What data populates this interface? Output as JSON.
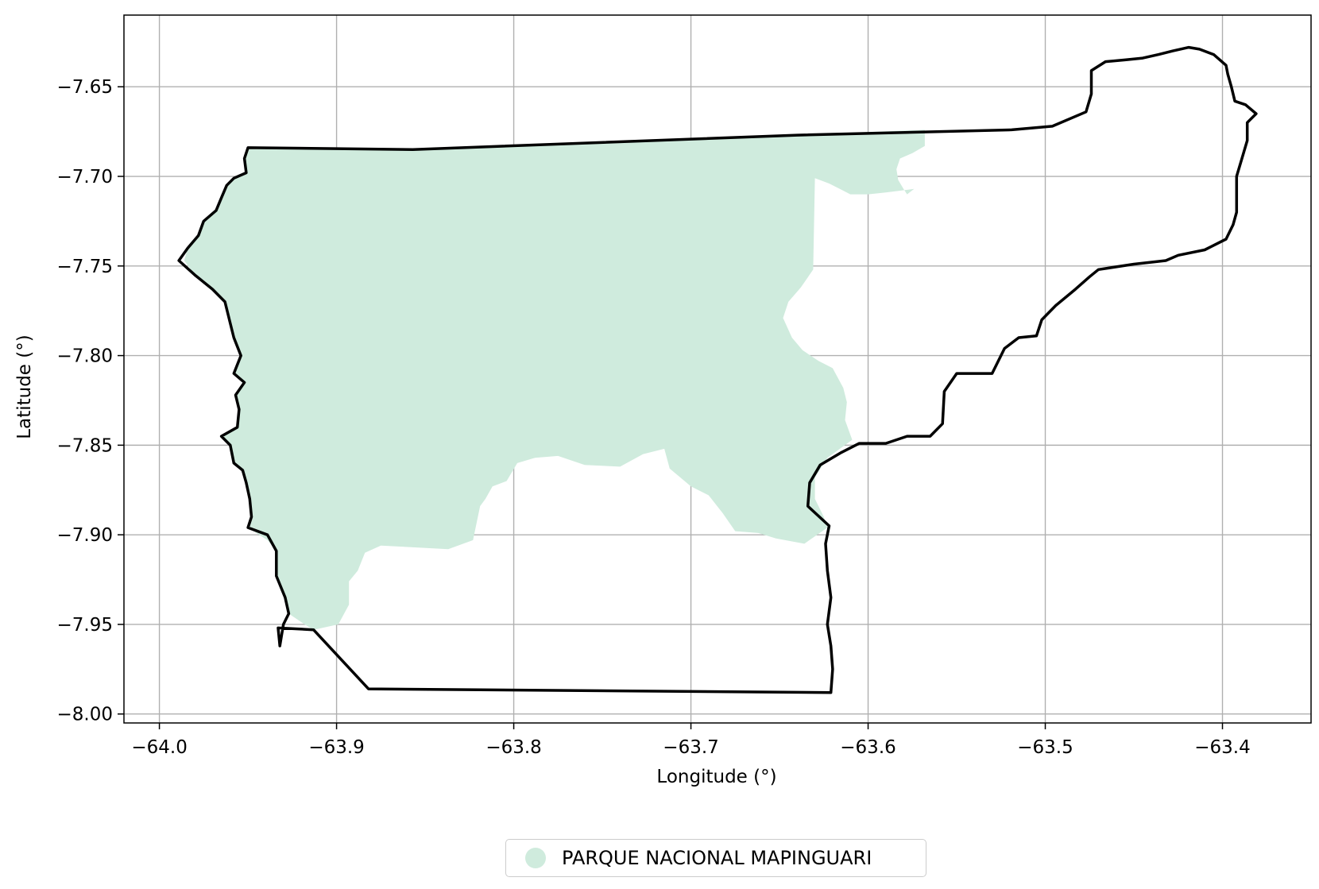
{
  "chart_data": {
    "type": "map",
    "xlabel": "Longitude (°)",
    "ylabel": "Latitude (°)",
    "xlim": [
      -64.02,
      -63.35
    ],
    "ylim": [
      -8.005,
      -7.61
    ],
    "x_ticks": [
      -64.0,
      -63.9,
      -63.8,
      -63.7,
      -63.6,
      -63.5,
      -63.4
    ],
    "x_tick_labels": [
      "−64.0",
      "−63.9",
      "−63.8",
      "−63.7",
      "−63.6",
      "−63.5",
      "−63.4"
    ],
    "y_ticks": [
      -7.65,
      -7.7,
      -7.75,
      -7.8,
      -7.85,
      -7.9,
      -7.95,
      -8.0
    ],
    "y_tick_labels": [
      "−7.65",
      "−7.70",
      "−7.75",
      "−7.80",
      "−7.85",
      "−7.90",
      "−7.95",
      "−8.00"
    ],
    "grid": true,
    "legend": {
      "position": "bottom-center",
      "entries": [
        {
          "label": "PARQUE NACIONAL MAPINGUARI",
          "color": "#cfebdd"
        }
      ]
    },
    "park_area": {
      "name": "PARQUE NACIONAL MAPINGUARI",
      "color": "#cfebdd",
      "coords": [
        [
          -63.95,
          -7.684
        ],
        [
          -63.857,
          -7.685
        ],
        [
          -63.568,
          -7.674
        ],
        [
          -63.568,
          -7.683
        ],
        [
          -63.575,
          -7.687
        ],
        [
          -63.582,
          -7.69
        ],
        [
          -63.584,
          -7.696
        ],
        [
          -63.583,
          -7.702
        ],
        [
          -63.58,
          -7.707
        ],
        [
          -63.578,
          -7.71
        ],
        [
          -63.574,
          -7.707
        ],
        [
          -63.59,
          -7.709
        ],
        [
          -63.6,
          -7.71
        ],
        [
          -63.61,
          -7.71
        ],
        [
          -63.616,
          -7.707
        ],
        [
          -63.622,
          -7.704
        ],
        [
          -63.63,
          -7.701
        ],
        [
          -63.631,
          -7.752
        ],
        [
          -63.638,
          -7.762
        ],
        [
          -63.645,
          -7.77
        ],
        [
          -63.648,
          -7.779
        ],
        [
          -63.643,
          -7.79
        ],
        [
          -63.637,
          -7.797
        ],
        [
          -63.628,
          -7.803
        ],
        [
          -63.62,
          -7.807
        ],
        [
          -63.614,
          -7.818
        ],
        [
          -63.612,
          -7.826
        ],
        [
          -63.613,
          -7.836
        ],
        [
          -63.609,
          -7.847
        ],
        [
          -63.623,
          -7.857
        ],
        [
          -63.63,
          -7.868
        ],
        [
          -63.63,
          -7.88
        ],
        [
          -63.625,
          -7.89
        ],
        [
          -63.623,
          -7.896
        ],
        [
          -63.636,
          -7.905
        ],
        [
          -63.652,
          -7.902
        ],
        [
          -63.662,
          -7.899
        ],
        [
          -63.675,
          -7.898
        ],
        [
          -63.682,
          -7.888
        ],
        [
          -63.69,
          -7.878
        ],
        [
          -63.7,
          -7.873
        ],
        [
          -63.712,
          -7.863
        ],
        [
          -63.715,
          -7.852
        ],
        [
          -63.727,
          -7.855
        ],
        [
          -63.74,
          -7.862
        ],
        [
          -63.76,
          -7.861
        ],
        [
          -63.775,
          -7.856
        ],
        [
          -63.788,
          -7.857
        ],
        [
          -63.798,
          -7.86
        ],
        [
          -63.804,
          -7.87
        ],
        [
          -63.812,
          -7.873
        ],
        [
          -63.816,
          -7.88
        ],
        [
          -63.819,
          -7.884
        ],
        [
          -63.823,
          -7.903
        ],
        [
          -63.837,
          -7.908
        ],
        [
          -63.875,
          -7.906
        ],
        [
          -63.884,
          -7.91
        ],
        [
          -63.888,
          -7.92
        ],
        [
          -63.893,
          -7.926
        ],
        [
          -63.893,
          -7.939
        ],
        [
          -63.899,
          -7.95
        ],
        [
          -63.913,
          -7.953
        ],
        [
          -63.918,
          -7.95
        ],
        [
          -63.927,
          -7.944
        ],
        [
          -63.929,
          -7.935
        ],
        [
          -63.934,
          -7.923
        ],
        [
          -63.934,
          -7.909
        ],
        [
          -63.939,
          -7.903
        ],
        [
          -63.95,
          -7.896
        ],
        [
          -63.948,
          -7.89
        ],
        [
          -63.949,
          -7.88
        ],
        [
          -63.951,
          -7.871
        ],
        [
          -63.953,
          -7.864
        ],
        [
          -63.958,
          -7.86
        ],
        [
          -63.96,
          -7.85
        ],
        [
          -63.965,
          -7.845
        ],
        [
          -63.956,
          -7.84
        ],
        [
          -63.955,
          -7.83
        ],
        [
          -63.957,
          -7.822
        ],
        [
          -63.952,
          -7.815
        ],
        [
          -63.958,
          -7.81
        ],
        [
          -63.954,
          -7.8
        ],
        [
          -63.958,
          -7.79
        ],
        [
          -63.96,
          -7.782
        ],
        [
          -63.963,
          -7.77
        ],
        [
          -63.97,
          -7.763
        ],
        [
          -63.98,
          -7.755
        ],
        [
          -63.986,
          -7.747
        ],
        [
          -63.984,
          -7.74
        ],
        [
          -63.978,
          -7.733
        ],
        [
          -63.975,
          -7.725
        ],
        [
          -63.968,
          -7.719
        ],
        [
          -63.965,
          -7.712
        ],
        [
          -63.962,
          -7.705
        ],
        [
          -63.958,
          -7.701
        ],
        [
          -63.951,
          -7.698
        ],
        [
          -63.952,
          -7.69
        ],
        [
          -63.95,
          -7.684
        ]
      ]
    },
    "boundary": {
      "color": "#000000",
      "coords": [
        [
          -63.932,
          -7.962
        ],
        [
          -63.933,
          -7.952
        ],
        [
          -63.913,
          -7.953
        ],
        [
          -63.882,
          -7.986
        ],
        [
          -63.621,
          -7.988
        ],
        [
          -63.62,
          -7.975
        ],
        [
          -63.621,
          -7.962
        ],
        [
          -63.623,
          -7.95
        ],
        [
          -63.621,
          -7.935
        ],
        [
          -63.623,
          -7.92
        ],
        [
          -63.624,
          -7.905
        ],
        [
          -63.622,
          -7.895
        ],
        [
          -63.634,
          -7.884
        ],
        [
          -63.633,
          -7.871
        ],
        [
          -63.627,
          -7.861
        ],
        [
          -63.615,
          -7.854
        ],
        [
          -63.605,
          -7.849
        ],
        [
          -63.59,
          -7.849
        ],
        [
          -63.578,
          -7.845
        ],
        [
          -63.565,
          -7.845
        ],
        [
          -63.558,
          -7.838
        ],
        [
          -63.557,
          -7.82
        ],
        [
          -63.55,
          -7.81
        ],
        [
          -63.53,
          -7.81
        ],
        [
          -63.523,
          -7.796
        ],
        [
          -63.515,
          -7.79
        ],
        [
          -63.505,
          -7.789
        ],
        [
          -63.502,
          -7.78
        ],
        [
          -63.494,
          -7.772
        ],
        [
          -63.483,
          -7.763
        ],
        [
          -63.475,
          -7.756
        ],
        [
          -63.47,
          -7.752
        ],
        [
          -63.45,
          -7.749
        ],
        [
          -63.432,
          -7.747
        ],
        [
          -63.425,
          -7.744
        ],
        [
          -63.41,
          -7.741
        ],
        [
          -63.398,
          -7.735
        ],
        [
          -63.394,
          -7.727
        ],
        [
          -63.392,
          -7.72
        ],
        [
          -63.392,
          -7.712
        ],
        [
          -63.392,
          -7.7
        ],
        [
          -63.389,
          -7.69
        ],
        [
          -63.386,
          -7.68
        ],
        [
          -63.386,
          -7.67
        ],
        [
          -63.381,
          -7.665
        ],
        [
          -63.387,
          -7.66
        ],
        [
          -63.393,
          -7.658
        ],
        [
          -63.395,
          -7.65
        ],
        [
          -63.397,
          -7.643
        ],
        [
          -63.398,
          -7.638
        ],
        [
          -63.405,
          -7.632
        ],
        [
          -63.413,
          -7.629
        ],
        [
          -63.419,
          -7.628
        ],
        [
          -63.428,
          -7.63
        ],
        [
          -63.436,
          -7.632
        ],
        [
          -63.445,
          -7.634
        ],
        [
          -63.455,
          -7.635
        ],
        [
          -63.466,
          -7.636
        ],
        [
          -63.474,
          -7.641
        ],
        [
          -63.474,
          -7.654
        ],
        [
          -63.477,
          -7.664
        ],
        [
          -63.496,
          -7.672
        ],
        [
          -63.519,
          -7.674
        ],
        [
          -63.64,
          -7.677
        ],
        [
          -63.857,
          -7.685
        ],
        [
          -63.95,
          -7.684
        ],
        [
          -63.952,
          -7.69
        ],
        [
          -63.951,
          -7.698
        ],
        [
          -63.958,
          -7.701
        ],
        [
          -63.962,
          -7.705
        ],
        [
          -63.965,
          -7.712
        ],
        [
          -63.968,
          -7.719
        ],
        [
          -63.975,
          -7.725
        ],
        [
          -63.978,
          -7.733
        ],
        [
          -63.984,
          -7.74
        ],
        [
          -63.989,
          -7.747
        ],
        [
          -63.98,
          -7.755
        ],
        [
          -63.97,
          -7.763
        ],
        [
          -63.963,
          -7.77
        ],
        [
          -63.96,
          -7.782
        ],
        [
          -63.958,
          -7.79
        ],
        [
          -63.954,
          -7.8
        ],
        [
          -63.958,
          -7.81
        ],
        [
          -63.952,
          -7.815
        ],
        [
          -63.957,
          -7.822
        ],
        [
          -63.955,
          -7.83
        ],
        [
          -63.956,
          -7.84
        ],
        [
          -63.965,
          -7.845
        ],
        [
          -63.96,
          -7.85
        ],
        [
          -63.958,
          -7.86
        ],
        [
          -63.953,
          -7.864
        ],
        [
          -63.951,
          -7.871
        ],
        [
          -63.949,
          -7.88
        ],
        [
          -63.948,
          -7.89
        ],
        [
          -63.95,
          -7.896
        ],
        [
          -63.939,
          -7.9
        ],
        [
          -63.934,
          -7.909
        ],
        [
          -63.934,
          -7.923
        ],
        [
          -63.929,
          -7.935
        ],
        [
          -63.927,
          -7.944
        ],
        [
          -63.93,
          -7.95
        ],
        [
          -63.932,
          -7.962
        ]
      ]
    }
  }
}
